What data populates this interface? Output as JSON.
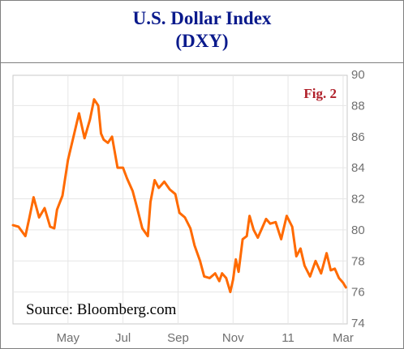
{
  "header": {
    "title_line1": "U.S. Dollar Index",
    "title_line2": "(DXY)"
  },
  "chart_data": {
    "type": "line",
    "title": "U.S. Dollar Index (DXY)",
    "annotation": "Fig. 2",
    "source": "Source: Bloomberg.com",
    "ylim": [
      74,
      90
    ],
    "y_ticks": [
      90,
      88,
      86,
      84,
      82,
      80,
      78,
      76,
      74
    ],
    "y_axis_side": "right",
    "x_ticks": [
      {
        "label": "May",
        "pos": 2.0
      },
      {
        "label": "Jul",
        "pos": 4.0
      },
      {
        "label": "Sep",
        "pos": 6.0
      },
      {
        "label": "Nov",
        "pos": 8.0
      },
      {
        "label": "11",
        "pos": 10.0
      },
      {
        "label": "Mar",
        "pos": 12.0
      }
    ],
    "xlim": [
      0.0,
      12.15
    ],
    "grid": true,
    "line_color": "#ff6a00",
    "series": [
      {
        "x": [
          0.0,
          0.2,
          0.45,
          0.6,
          0.75,
          0.95,
          1.15,
          1.35,
          1.5,
          1.6,
          1.8,
          2.0,
          2.2,
          2.4,
          2.6,
          2.8,
          2.95,
          3.1,
          3.2,
          3.3,
          3.45,
          3.6,
          3.8,
          4.0,
          4.15,
          4.35,
          4.5,
          4.7,
          4.9,
          5.0,
          5.15,
          5.3,
          5.5,
          5.7,
          5.9,
          6.05,
          6.25,
          6.45,
          6.6,
          6.8,
          6.95,
          7.15,
          7.35,
          7.5,
          7.6,
          7.75,
          7.9,
          8.0,
          8.1,
          8.2,
          8.35,
          8.5,
          8.6,
          8.75,
          8.9,
          9.05,
          9.2,
          9.35,
          9.55,
          9.75,
          9.95,
          10.15,
          10.3,
          10.45,
          10.6,
          10.8,
          11.0,
          11.2,
          11.4,
          11.55,
          11.7,
          11.85,
          12.0,
          12.1
        ],
        "y": [
          80.3,
          80.2,
          79.6,
          80.8,
          82.1,
          80.8,
          81.4,
          80.2,
          80.1,
          81.3,
          82.2,
          84.5,
          86.0,
          87.5,
          85.9,
          87.1,
          88.4,
          88.0,
          86.2,
          85.8,
          85.6,
          86.0,
          84.0,
          84.0,
          83.3,
          82.5,
          81.5,
          80.1,
          79.6,
          81.8,
          83.2,
          82.7,
          83.1,
          82.6,
          82.3,
          81.1,
          80.8,
          80.1,
          79.0,
          78.0,
          77.0,
          76.9,
          77.2,
          76.7,
          77.2,
          76.9,
          76.0,
          76.8,
          78.1,
          77.3,
          79.4,
          79.6,
          80.9,
          80.0,
          79.5,
          80.1,
          80.7,
          80.4,
          80.5,
          79.4,
          80.9,
          80.2,
          78.3,
          78.8,
          77.7,
          77.0,
          78.0,
          77.2,
          78.5,
          77.4,
          77.5,
          76.9,
          76.6,
          76.3
        ]
      }
    ]
  }
}
